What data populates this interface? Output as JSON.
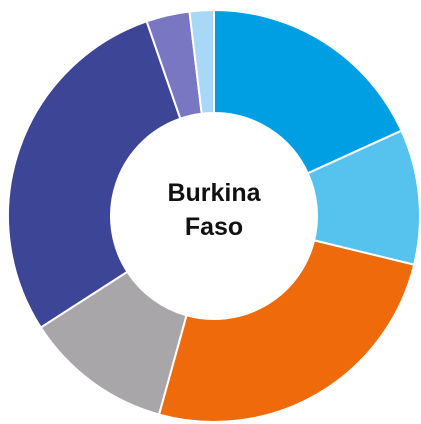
{
  "chart_data": {
    "type": "donut",
    "title": "Burkina Faso",
    "values": [
      18.2,
      10.6,
      25.5,
      11.6,
      28.8,
      3.4,
      1.9
    ],
    "colors": [
      "#009fe3",
      "#56c3ef",
      "#ef6a0a",
      "#a8a6a8",
      "#3c4596",
      "#7a77c2",
      "#a8d8f5"
    ]
  }
}
